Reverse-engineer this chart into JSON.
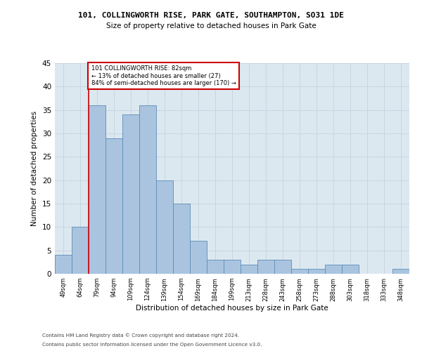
{
  "title1": "101, COLLINGWORTH RISE, PARK GATE, SOUTHAMPTON, SO31 1DE",
  "title2": "Size of property relative to detached houses in Park Gate",
  "xlabel": "Distribution of detached houses by size in Park Gate",
  "ylabel": "Number of detached properties",
  "categories": [
    "49sqm",
    "64sqm",
    "79sqm",
    "94sqm",
    "109sqm",
    "124sqm",
    "139sqm",
    "154sqm",
    "169sqm",
    "184sqm",
    "199sqm",
    "213sqm",
    "228sqm",
    "243sqm",
    "258sqm",
    "273sqm",
    "288sqm",
    "303sqm",
    "318sqm",
    "333sqm",
    "348sqm"
  ],
  "values": [
    4,
    10,
    36,
    29,
    34,
    36,
    20,
    15,
    7,
    3,
    3,
    2,
    3,
    3,
    1,
    1,
    2,
    2,
    0,
    0,
    1
  ],
  "bar_color": "#aac4e0",
  "bar_edge_color": "#5b8db8",
  "annotation_box_color": "#cc0000",
  "vline_color": "#cc0000",
  "annotation_line1": "101 COLLINGWORTH RISE: 82sqm",
  "annotation_line2": "← 13% of detached houses are smaller (27)",
  "annotation_line3": "84% of semi-detached houses are larger (170) →",
  "ylim": [
    0,
    45
  ],
  "yticks": [
    0,
    5,
    10,
    15,
    20,
    25,
    30,
    35,
    40,
    45
  ],
  "grid_color": "#c8d4e0",
  "bg_color": "#dce8f0",
  "footer1": "Contains HM Land Registry data © Crown copyright and database right 2024.",
  "footer2": "Contains public sector information licensed under the Open Government Licence v3.0."
}
